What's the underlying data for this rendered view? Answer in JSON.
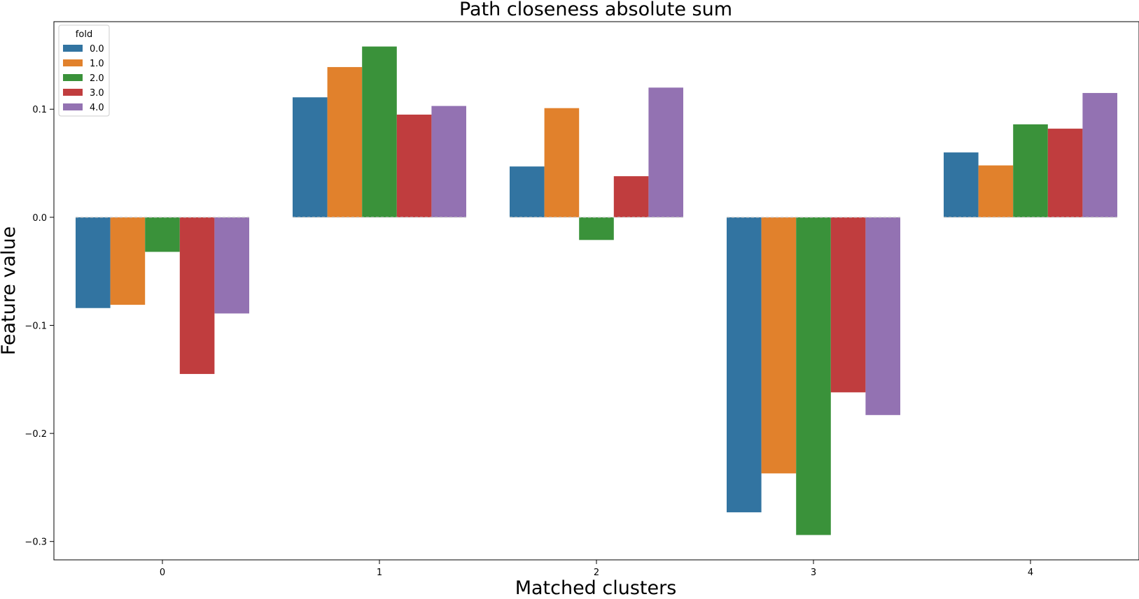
{
  "chart_data": {
    "type": "bar",
    "title": "Path closeness absolute sum",
    "xlabel": "Matched clusters",
    "ylabel": "Feature value",
    "categories": [
      "0",
      "1",
      "2",
      "3",
      "4"
    ],
    "ylim": [
      -0.317,
      0.181
    ],
    "yticks": [
      -0.3,
      -0.2,
      -0.1,
      0.0,
      0.1
    ],
    "ytick_labels": [
      "−0.3",
      "−0.2",
      "−0.1",
      "0.0",
      "0.1"
    ],
    "legend": {
      "title": "fold",
      "position": "top-left"
    },
    "grid": false,
    "series": [
      {
        "name": "0.0",
        "color": "#3274a1",
        "values": [
          -0.084,
          0.111,
          0.047,
          -0.273,
          0.06
        ]
      },
      {
        "name": "1.0",
        "color": "#e1812c",
        "values": [
          -0.081,
          0.139,
          0.101,
          -0.237,
          0.048
        ]
      },
      {
        "name": "2.0",
        "color": "#3a923a",
        "values": [
          -0.032,
          0.158,
          -0.021,
          -0.294,
          0.086
        ]
      },
      {
        "name": "3.0",
        "color": "#c03d3e",
        "values": [
          -0.145,
          0.095,
          0.038,
          -0.162,
          0.082
        ]
      },
      {
        "name": "4.0",
        "color": "#9372b2",
        "values": [
          -0.089,
          0.103,
          0.12,
          -0.183,
          0.115
        ]
      }
    ]
  }
}
